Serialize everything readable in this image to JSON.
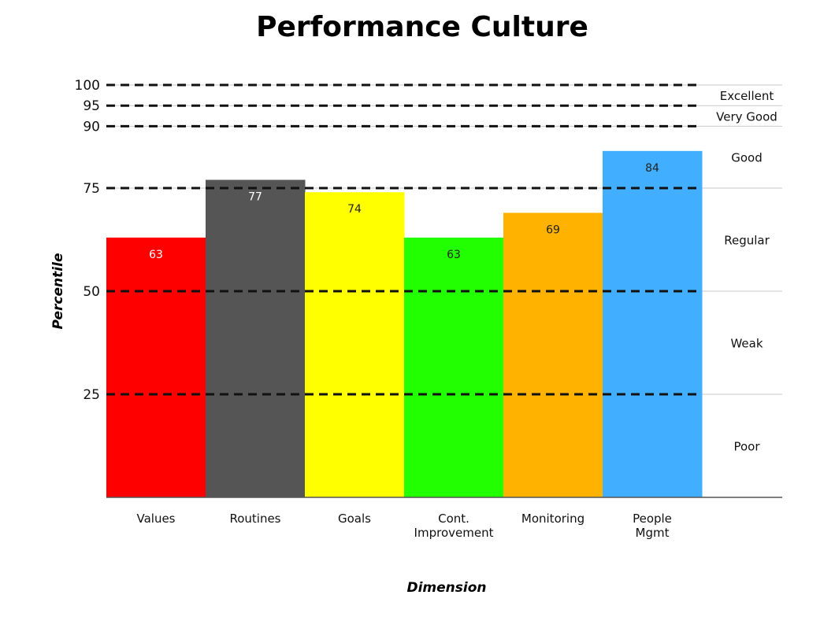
{
  "chart_data": {
    "type": "bar",
    "title": "Performance Culture",
    "xlabel": "Dimension",
    "ylabel": "Percentile",
    "ylim": [
      0,
      100
    ],
    "yticks": [
      25,
      50,
      75,
      90,
      95,
      100
    ],
    "categories": [
      "Values",
      "Routines",
      "Goals",
      "Cont. Improvement",
      "Monitoring",
      "People Mgmt"
    ],
    "category_lines": [
      [
        "Values"
      ],
      [
        "Routines"
      ],
      [
        "Goals"
      ],
      [
        "Cont.",
        "Improvement"
      ],
      [
        "Monitoring"
      ],
      [
        "People",
        "Mgmt"
      ]
    ],
    "values": [
      63,
      77,
      74,
      63,
      69,
      84
    ],
    "bar_colors": [
      "#ff0000",
      "#555555",
      "#ffff00",
      "#22ff00",
      "#ffb300",
      "#42aeff"
    ],
    "label_colors": [
      "#ffffff",
      "#ffffff",
      "#222222",
      "#222222",
      "#222222",
      "#222222"
    ],
    "bands": [
      {
        "label": "Excellent",
        "from": 95,
        "to": 100
      },
      {
        "label": "Very Good",
        "from": 90,
        "to": 95
      },
      {
        "label": "Good",
        "from": 75,
        "to": 90
      },
      {
        "label": "Regular",
        "from": 50,
        "to": 75
      },
      {
        "label": "Weak",
        "from": 25,
        "to": 50
      },
      {
        "label": "Poor",
        "from": 0,
        "to": 25
      }
    ],
    "legend": "none",
    "grid": "dashed threshold lines"
  }
}
